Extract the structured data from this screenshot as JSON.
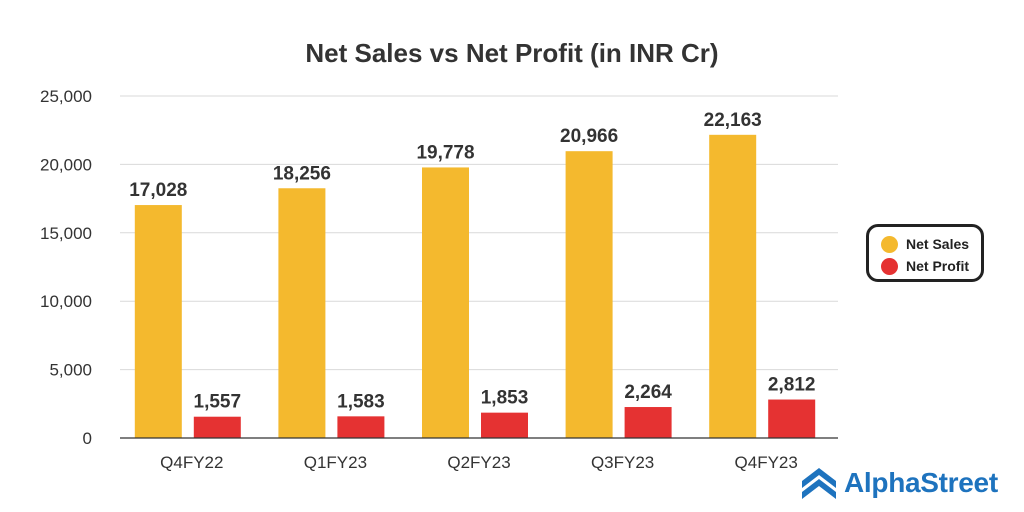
{
  "chart_data": {
    "type": "bar",
    "title": "Net Sales vs Net Profit (in INR Cr)",
    "xlabel": "",
    "ylabel": "",
    "categories": [
      "Q4FY22",
      "Q1FY23",
      "Q2FY23",
      "Q3FY23",
      "Q4FY23"
    ],
    "series": [
      {
        "name": "Net Sales",
        "color": "#f4b92e",
        "values": [
          17028,
          18256,
          19778,
          20966,
          22163
        ],
        "labels": [
          "17,028",
          "18,256",
          "19,778",
          "20,966",
          "22,163"
        ]
      },
      {
        "name": "Net Profit",
        "color": "#e53232",
        "values": [
          1557,
          1583,
          1853,
          2264,
          2812
        ],
        "labels": [
          "1,557",
          "1,583",
          "1,853",
          "2,264",
          "2,812"
        ]
      }
    ],
    "ylim": [
      0,
      25000
    ],
    "yticks": [
      0,
      5000,
      10000,
      15000,
      20000,
      25000
    ],
    "ytick_labels": [
      "0",
      "5,000",
      "10,000",
      "15,000",
      "20,000",
      "25,000"
    ],
    "grid": true,
    "legend_position": "right"
  },
  "legend": {
    "items": [
      {
        "label": "Net Sales",
        "color": "#f4b92e"
      },
      {
        "label": "Net Profit",
        "color": "#e53232"
      }
    ]
  },
  "brand": {
    "name": "AlphaStreet",
    "logo_icon": "alphastreet-logo-icon",
    "color": "#1e73be"
  }
}
